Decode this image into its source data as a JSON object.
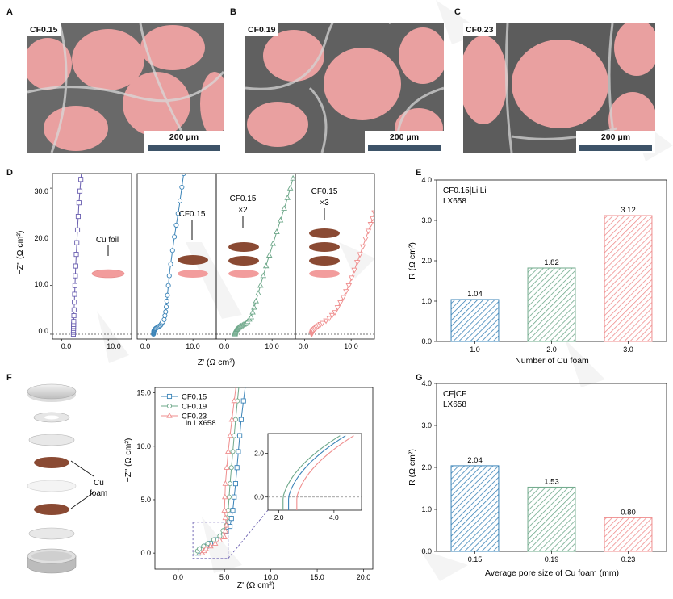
{
  "panels": {
    "A": {
      "letter": "A",
      "tag": "CF0.15",
      "scale": "200 μm"
    },
    "B": {
      "letter": "B",
      "tag": "CF0.19",
      "scale": "200 μm"
    },
    "C": {
      "letter": "C",
      "tag": "CF0.23",
      "scale": "200 μm"
    },
    "D": {
      "letter": "D"
    },
    "E": {
      "letter": "E"
    },
    "F": {
      "letter": "F"
    },
    "G": {
      "letter": "G"
    }
  },
  "panel_d": {
    "ylabel": "−Z'' (Ω cm²)",
    "xlabel": "Z' (Ω cm²)",
    "yticks": [
      "0.0",
      "10.0",
      "20.0",
      "30.0"
    ],
    "xticks": [
      "0.0",
      "10.0"
    ],
    "annotations": [
      "Cu foil",
      "CF0.15",
      "CF0.15",
      "×2",
      "CF0.15",
      "×3"
    ]
  },
  "panel_e": {
    "note_line1": "CF0.15|Li|Li",
    "note_line2": "LX658"
  },
  "panel_f": {
    "foam_label_1": "Cu",
    "foam_label_2": "foam",
    "legend_extra": "in LX658",
    "inset_xticks": [
      "2.0",
      "4.0"
    ],
    "inset_yticks": [
      "0.0",
      "2.0"
    ]
  },
  "panel_g": {
    "note_line1": "CF|CF",
    "note_line2": "LX658"
  },
  "colors": {
    "purple": "#6a5fb0",
    "blue": "#3a83b7",
    "green": "#6ea88a",
    "pink": "#ef8e8e",
    "pore": "#e9a0a0",
    "copper": "#8a4a33"
  },
  "chart_data": [
    {
      "type": "line",
      "title": "",
      "xlabel": "Z' (Ω cm²)",
      "ylabel": "−Z'' (Ω cm²)",
      "xlim": [
        -2,
        15
      ],
      "ylim": [
        -1,
        33
      ],
      "subpanels": [
        {
          "name": "Cu foil",
          "color": "#6a5fb0",
          "x": [
            2.5,
            2.55,
            2.65,
            2.8,
            3.0,
            3.3,
            3.7,
            4.2
          ],
          "y": [
            0.0,
            2.0,
            5.0,
            9.0,
            14.0,
            20.0,
            27.0,
            33.0
          ]
        },
        {
          "name": "CF0.15",
          "color": "#3a83b7",
          "x": [
            1.5,
            1.6,
            2.0,
            3.0,
            3.8,
            4.2,
            4.5,
            5.0,
            6.0,
            7.0,
            8.0
          ],
          "y": [
            0.0,
            0.7,
            1.2,
            1.8,
            3.0,
            5.0,
            8.0,
            13.0,
            20.0,
            26.0,
            33.0
          ]
        },
        {
          "name": "CF0.15 ×2",
          "color": "#6ea88a",
          "x": [
            2.0,
            2.2,
            3.0,
            4.5,
            5.5,
            6.3,
            7.5,
            9.0,
            11.0,
            13.0,
            14.5
          ],
          "y": [
            0.0,
            0.8,
            1.5,
            2.3,
            3.5,
            6.0,
            10.0,
            15.0,
            21.0,
            27.0,
            32.0
          ]
        },
        {
          "name": "CF0.15 ×3",
          "color": "#ef8e8e",
          "x": [
            1.5,
            1.8,
            3.0,
            5.0,
            6.5,
            8.0,
            9.5,
            11.0,
            12.5,
            14.0,
            15.0
          ],
          "y": [
            0.0,
            0.8,
            1.8,
            3.0,
            4.5,
            7.0,
            10.0,
            14.0,
            18.0,
            22.0,
            25.0
          ]
        }
      ]
    },
    {
      "type": "bar",
      "title": "",
      "xlabel": "Number of Cu foam",
      "ylabel": "R (Ω cm²)",
      "categories": [
        "1.0",
        "2.0",
        "3.0"
      ],
      "values": [
        1.04,
        1.82,
        3.12
      ],
      "value_labels": [
        "1.04",
        "1.82",
        "3.12"
      ],
      "colors": [
        "#3a83b7",
        "#6ea88a",
        "#ef8e8e"
      ],
      "ylim": [
        0,
        4
      ],
      "yticks": [
        "0.0",
        "1.0",
        "2.0",
        "3.0",
        "4.0"
      ]
    },
    {
      "type": "line",
      "title": "",
      "xlabel": "Z' (Ω cm²)",
      "ylabel": "−Z'' (Ω cm²)",
      "xlim": [
        -2.5,
        21
      ],
      "ylim": [
        -1.5,
        15.5
      ],
      "xticks": [
        "0.0",
        "5.0",
        "10.0",
        "15.0",
        "20.0"
      ],
      "yticks": [
        "0.0",
        "5.0",
        "10.0",
        "15.0"
      ],
      "series": [
        {
          "name": "CF0.15",
          "marker": "square",
          "color": "#3a83b7",
          "x": [
            2.2,
            2.6,
            3.5,
            4.8,
            5.6,
            5.9,
            6.2,
            6.5,
            6.8,
            7.3
          ],
          "y": [
            0.0,
            0.4,
            0.9,
            1.6,
            2.5,
            4.0,
            6.5,
            9.5,
            12.5,
            16.0
          ]
        },
        {
          "name": "CF0.19",
          "marker": "circle",
          "color": "#6ea88a",
          "x": [
            1.9,
            2.3,
            3.2,
            4.5,
            5.2,
            5.4,
            5.6,
            5.9,
            6.2,
            6.6
          ],
          "y": [
            0.0,
            0.4,
            0.9,
            1.6,
            2.6,
            4.0,
            6.5,
            9.5,
            12.5,
            16.0
          ]
        },
        {
          "name": "CF0.23",
          "marker": "triangle",
          "color": "#ef8e8e",
          "x": [
            2.6,
            3.0,
            4.0,
            5.0,
            5.2,
            5.0,
            5.1,
            5.4,
            5.8,
            6.3
          ],
          "y": [
            0.0,
            0.4,
            0.9,
            1.5,
            2.6,
            4.0,
            6.5,
            9.5,
            12.5,
            16.0
          ]
        }
      ],
      "inset": {
        "xlim": [
          1.6,
          5.0
        ],
        "ylim": [
          -0.6,
          2.9
        ]
      }
    },
    {
      "type": "bar",
      "title": "",
      "xlabel": "Average pore size of Cu foam (mm)",
      "ylabel": "R (Ω cm²)",
      "categories": [
        "0.15",
        "0.19",
        "0.23"
      ],
      "values": [
        2.04,
        1.53,
        0.8
      ],
      "value_labels": [
        "2.04",
        "1.53",
        "0.80"
      ],
      "colors": [
        "#3a83b7",
        "#6ea88a",
        "#ef8e8e"
      ],
      "ylim": [
        0,
        4
      ],
      "yticks": [
        "0.0",
        "1.0",
        "2.0",
        "3.0",
        "4.0"
      ]
    }
  ]
}
